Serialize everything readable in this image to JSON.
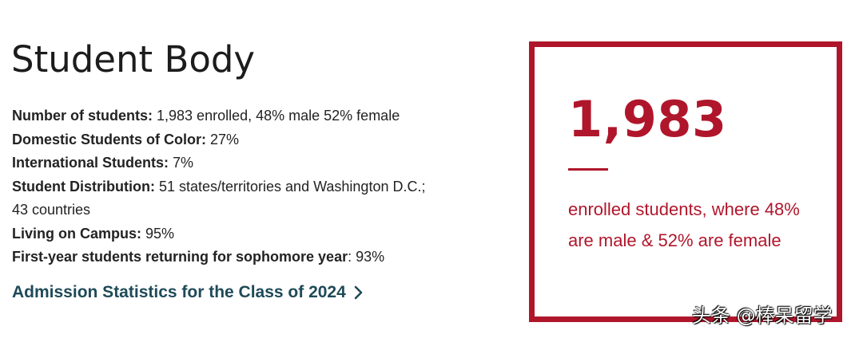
{
  "page": {
    "title": "Student Body"
  },
  "facts": [
    {
      "label": "Number of students:",
      "value": " 1,983 enrolled, 48% male 52% female"
    },
    {
      "label": "Domestic Students of Color:",
      "value": " 27%"
    },
    {
      "label": "International Students:",
      "value": " 7%"
    },
    {
      "label": "Student Distribution:",
      "value": " 51 states/territories and Washington D.C.;"
    },
    {
      "label": "",
      "value": "43 countries"
    },
    {
      "label": "Living on Campus:",
      "value": " 95%"
    },
    {
      "label": "First-year students returning for sophomore year",
      "value": ": 93%"
    }
  ],
  "link": {
    "text": "Admission Statistics for the Class of 2024",
    "icon": "chevron-right-icon",
    "color": "#1e4a58"
  },
  "stat": {
    "number": "1,983",
    "description": "enrolled students, where 48% are male & 52% are female",
    "accent_color": "#b0162b"
  },
  "watermark": {
    "text": "头条 @棒呆留学"
  }
}
